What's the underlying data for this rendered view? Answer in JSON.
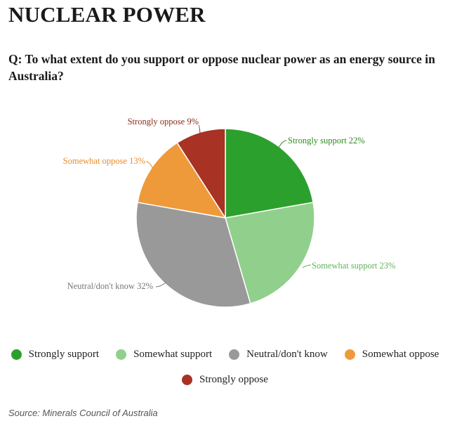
{
  "title": "NUCLEAR POWER",
  "question": "Q: To what extent do you support or oppose nuclear power as an energy source in Australia?",
  "source": "Source: Minerals Council of Australia",
  "chart_data": {
    "type": "pie",
    "title": "NUCLEAR POWER",
    "slices": [
      {
        "label": "Strongly support",
        "value": 22,
        "data_label": "Strongly support 22%",
        "color": "#2ca02c",
        "label_color": "#2c8c1c"
      },
      {
        "label": "Somewhat support",
        "value": 23,
        "data_label": "Somewhat support 23%",
        "color": "#90d08c",
        "label_color": "#5fb35b"
      },
      {
        "label": "Neutral/don't know",
        "value": 32,
        "data_label": "Neutral/don't know 32%",
        "color": "#999999",
        "label_color": "#777777"
      },
      {
        "label": "Somewhat oppose",
        "value": 13,
        "data_label": "Somewhat oppose 13%",
        "color": "#ee9a3a",
        "label_color": "#e88a2a"
      },
      {
        "label": "Strongly oppose",
        "value": 9,
        "data_label": "Strongly oppose 9%",
        "color": "#a83224",
        "label_color": "#8c2a1e"
      }
    ],
    "legend_position": "bottom",
    "legend_rows": [
      [
        0,
        1,
        2,
        3
      ],
      [
        4
      ]
    ]
  }
}
